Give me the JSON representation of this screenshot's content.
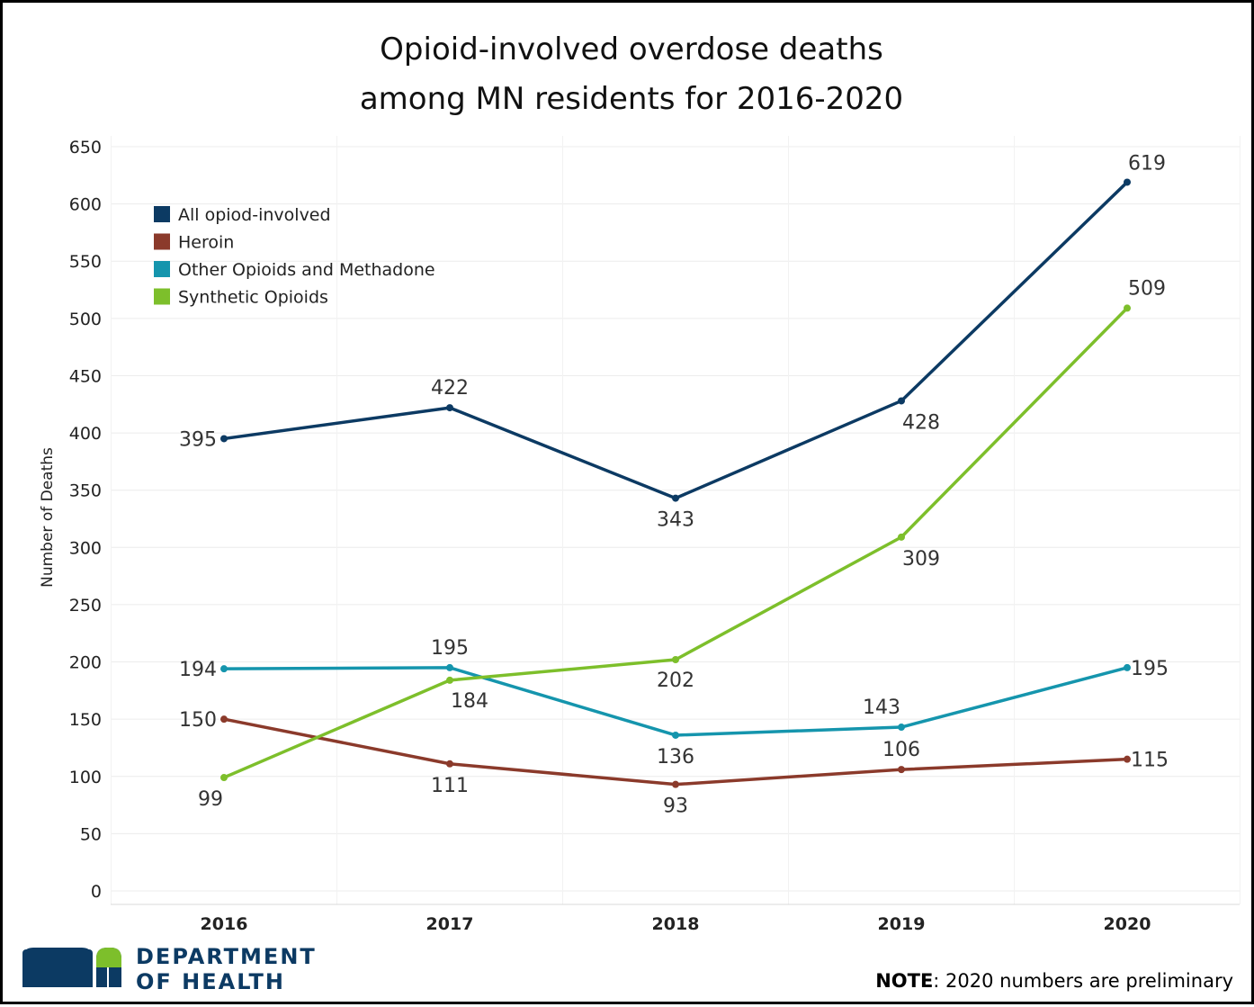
{
  "chart_data": {
    "type": "line",
    "title_lines": [
      "Opioid-involved overdose deaths",
      "among MN residents for 2016-2020"
    ],
    "ylabel": "Number of Deaths",
    "xlabel": "",
    "categories": [
      "2016",
      "2017",
      "2018",
      "2019",
      "2020"
    ],
    "ylim": [
      0,
      650
    ],
    "yticks": [
      0,
      50,
      100,
      150,
      200,
      250,
      300,
      350,
      400,
      450,
      500,
      550,
      600,
      650
    ],
    "grid": true,
    "legend_position": "top-left",
    "series": [
      {
        "name": "All opiod-involved",
        "color": "#0c3a63",
        "values": [
          395,
          422,
          343,
          428,
          619
        ]
      },
      {
        "name": "Heroin",
        "color": "#8b3a2b",
        "values": [
          150,
          111,
          93,
          106,
          115
        ]
      },
      {
        "name": "Other Opioids and Methadone",
        "color": "#1595ad",
        "values": [
          194,
          195,
          136,
          143,
          195
        ]
      },
      {
        "name": "Synthetic Opioids",
        "color": "#7dbf2b",
        "values": [
          99,
          184,
          202,
          309,
          509
        ]
      }
    ]
  },
  "footer": {
    "logo_text": "mn",
    "org_line1": "DEPARTMENT",
    "org_line2": "OF HEALTH",
    "note_bold": "NOTE",
    "note_rest": ": 2020 numbers are preliminary",
    "brand_color": "#0c3a63",
    "logo_accent": "#7dbf2b"
  }
}
